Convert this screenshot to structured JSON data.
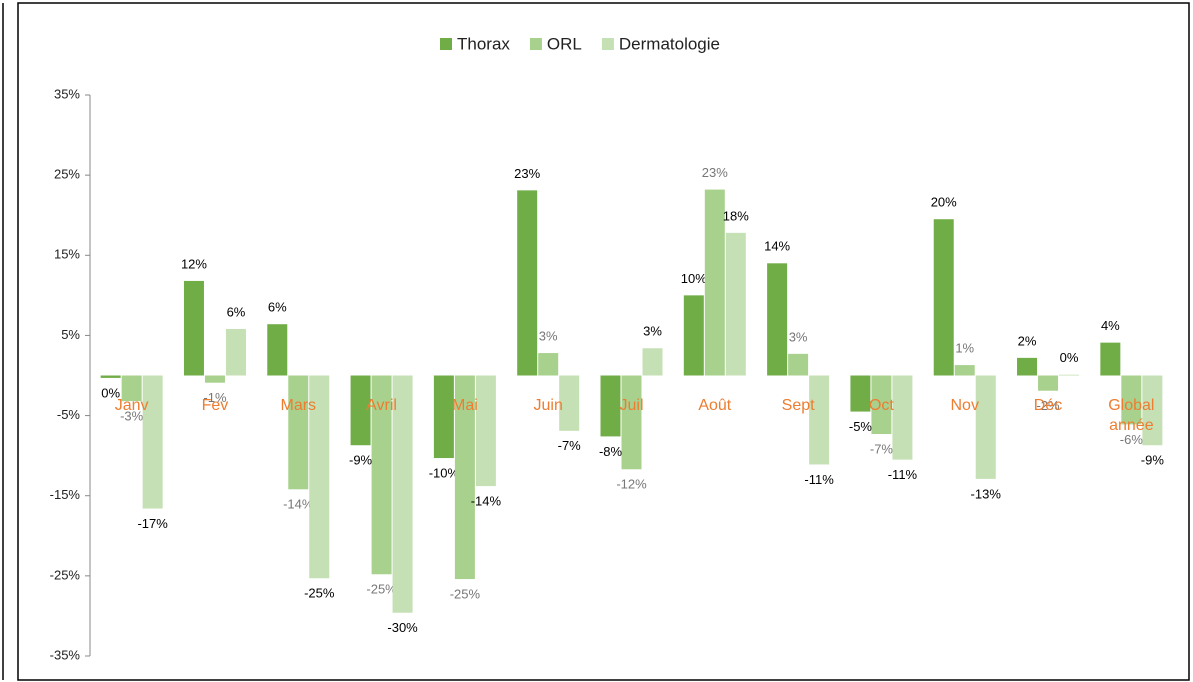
{
  "chart_data": {
    "type": "bar",
    "categories": [
      "Janv",
      "Fev",
      "Mars",
      "Avril",
      "Mai",
      "Juin",
      "Juil",
      "Août",
      "Sept",
      "Oct",
      "Nov",
      "Déc",
      "Global année"
    ],
    "series": [
      {
        "name": "Thorax",
        "color": "#70ad47",
        "values": [
          -0.3,
          11.8,
          6.4,
          -8.7,
          -10.3,
          23.1,
          -7.6,
          10,
          14,
          -4.5,
          19.5,
          2.2,
          4.1
        ],
        "value_labels": [
          "0%",
          "12%",
          "6%",
          "-9%",
          "-10%",
          "23%",
          "-8%",
          "10%",
          "14%",
          "-5%",
          "20%",
          "2%",
          "4%"
        ]
      },
      {
        "name": "ORL",
        "color": "#a9d18e",
        "values": [
          -3.2,
          -0.9,
          -14.2,
          -24.8,
          -25.4,
          2.8,
          -11.7,
          23.2,
          2.7,
          -7.3,
          1.3,
          -1.9,
          -6.1
        ],
        "value_labels": [
          "-3%",
          "-1%",
          "-14%",
          "-25%",
          "-25%",
          "3%",
          "-12%",
          "23%",
          "3%",
          "-7%",
          "1%",
          "-2%",
          "-6%"
        ]
      },
      {
        "name": "Dermatologie",
        "color": "#c5e0b4",
        "values": [
          -16.6,
          5.8,
          -25.3,
          -29.6,
          -13.8,
          -6.9,
          3.4,
          17.8,
          -11.1,
          -10.5,
          -12.9,
          0.1,
          -8.7
        ],
        "value_labels": [
          "-17%",
          "6%",
          "-25%",
          "-30%",
          "-14%",
          "-7%",
          "3%",
          "18%",
          "-11%",
          "-11%",
          "-13%",
          "0%",
          "-9%"
        ]
      }
    ],
    "ylim": [
      -35,
      35
    ],
    "yticks": [
      {
        "value": -35,
        "label": "-35%"
      },
      {
        "value": -25,
        "label": "-25%"
      },
      {
        "value": -15,
        "label": "-15%"
      },
      {
        "value": -5,
        "label": "-5%"
      },
      {
        "value": 5,
        "label": "5%"
      },
      {
        "value": 15,
        "label": "15%"
      },
      {
        "value": 25,
        "label": "25%"
      },
      {
        "value": 35,
        "label": "35%"
      }
    ],
    "legend": "top",
    "category_label_color": "#ed7d31"
  }
}
